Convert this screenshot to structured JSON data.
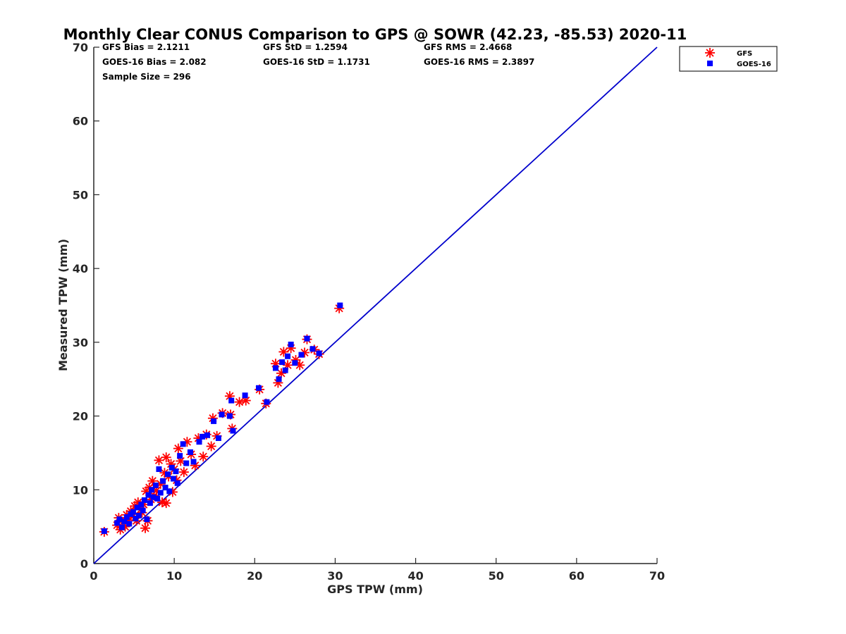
{
  "chart_data": {
    "type": "scatter",
    "title": "Monthly Clear CONUS Comparison to GPS @ SOWR (42.23, -85.53) 2020-11",
    "xlabel": "GPS TPW (mm)",
    "ylabel": "Measured TPW (mm)",
    "xlim": [
      0,
      70
    ],
    "ylim": [
      0,
      70
    ],
    "xticks": [
      "0",
      "10",
      "20",
      "30",
      "40",
      "50",
      "60",
      "70"
    ],
    "yticks": [
      "0",
      "10",
      "20",
      "30",
      "40",
      "50",
      "60",
      "70"
    ],
    "stats": {
      "gfs_bias": "GFS Bias = 2.1211",
      "gfs_std": "GFS StD = 1.2594",
      "gfs_rms": "GFS RMS = 2.4668",
      "goes_bias": "GOES-16 Bias = 2.082",
      "goes_std": "GOES-16 StD = 1.1731",
      "goes_rms": "GOES-16 RMS = 2.3897",
      "sample_size": "Sample Size = 296"
    },
    "legend_position": "outside-top-right",
    "reference_line": {
      "from": [
        0,
        0
      ],
      "to": [
        70,
        70
      ],
      "color": "#0000cc"
    },
    "series": [
      {
        "name": "GFS",
        "marker": "asterisk",
        "color": "#ff0000",
        "points": [
          [
            1.3,
            4.3
          ],
          [
            2.9,
            5.2
          ],
          [
            3.1,
            6.2
          ],
          [
            3.3,
            4.6
          ],
          [
            3.6,
            5.6
          ],
          [
            3.9,
            5.0
          ],
          [
            4.1,
            6.6
          ],
          [
            4.3,
            5.9
          ],
          [
            4.6,
            7.1
          ],
          [
            4.9,
            6.4
          ],
          [
            5.1,
            7.8
          ],
          [
            5.3,
            5.8
          ],
          [
            5.5,
            8.3
          ],
          [
            5.8,
            7.3
          ],
          [
            6.0,
            6.9
          ],
          [
            6.2,
            8.0
          ],
          [
            6.4,
            4.8
          ],
          [
            6.5,
            9.8
          ],
          [
            6.7,
            5.8
          ],
          [
            6.9,
            10.3
          ],
          [
            7.1,
            8.7
          ],
          [
            7.3,
            11.2
          ],
          [
            7.5,
            9.2
          ],
          [
            7.8,
            9.9
          ],
          [
            8.1,
            14.0
          ],
          [
            8.3,
            10.8
          ],
          [
            8.5,
            8.3
          ],
          [
            8.8,
            12.3
          ],
          [
            9.0,
            14.4
          ],
          [
            9.0,
            8.2
          ],
          [
            9.3,
            11.8
          ],
          [
            9.6,
            13.5
          ],
          [
            9.8,
            9.7
          ],
          [
            10.0,
            12.8
          ],
          [
            10.3,
            11.3
          ],
          [
            10.5,
            15.6
          ],
          [
            10.8,
            13.9
          ],
          [
            11.2,
            12.4
          ],
          [
            11.6,
            16.5
          ],
          [
            12.1,
            14.8
          ],
          [
            12.6,
            13.3
          ],
          [
            13.0,
            17.0
          ],
          [
            13.6,
            14.5
          ],
          [
            14.0,
            17.5
          ],
          [
            14.6,
            15.9
          ],
          [
            14.8,
            19.7
          ],
          [
            15.3,
            17.3
          ],
          [
            16.0,
            20.4
          ],
          [
            16.9,
            22.7
          ],
          [
            17.2,
            18.3
          ],
          [
            17.0,
            20.2
          ],
          [
            18.1,
            21.9
          ],
          [
            18.9,
            22.1
          ],
          [
            20.6,
            23.6
          ],
          [
            21.4,
            21.7
          ],
          [
            22.6,
            27.1
          ],
          [
            22.9,
            24.5
          ],
          [
            23.3,
            25.8
          ],
          [
            23.6,
            28.7
          ],
          [
            24.1,
            26.9
          ],
          [
            24.5,
            29.2
          ],
          [
            25.1,
            27.6
          ],
          [
            25.6,
            26.9
          ],
          [
            26.2,
            28.6
          ],
          [
            26.5,
            30.4
          ],
          [
            27.4,
            29.0
          ],
          [
            28.0,
            28.4
          ],
          [
            30.5,
            34.6
          ]
        ]
      },
      {
        "name": "GOES-16",
        "marker": "square",
        "color": "#0000ff",
        "points": [
          [
            1.3,
            4.4
          ],
          [
            2.9,
            5.5
          ],
          [
            3.2,
            6.0
          ],
          [
            3.5,
            4.9
          ],
          [
            3.8,
            5.7
          ],
          [
            4.1,
            6.3
          ],
          [
            4.4,
            5.4
          ],
          [
            4.6,
            6.7
          ],
          [
            4.9,
            7.0
          ],
          [
            5.2,
            6.1
          ],
          [
            5.4,
            7.6
          ],
          [
            5.6,
            6.5
          ],
          [
            5.9,
            8.0
          ],
          [
            6.1,
            7.2
          ],
          [
            6.3,
            8.6
          ],
          [
            6.6,
            6.0
          ],
          [
            6.8,
            9.3
          ],
          [
            7.0,
            8.2
          ],
          [
            7.2,
            10.0
          ],
          [
            7.4,
            9.0
          ],
          [
            7.7,
            10.6
          ],
          [
            7.9,
            8.8
          ],
          [
            8.1,
            12.8
          ],
          [
            8.3,
            9.6
          ],
          [
            8.6,
            11.2
          ],
          [
            8.9,
            10.3
          ],
          [
            9.2,
            12.1
          ],
          [
            9.4,
            9.8
          ],
          [
            9.7,
            13.0
          ],
          [
            9.9,
            11.5
          ],
          [
            10.2,
            12.5
          ],
          [
            10.4,
            10.9
          ],
          [
            10.7,
            14.6
          ],
          [
            11.1,
            16.2
          ],
          [
            11.5,
            13.6
          ],
          [
            12.0,
            15.1
          ],
          [
            12.4,
            13.8
          ],
          [
            13.1,
            16.5
          ],
          [
            13.5,
            17.2
          ],
          [
            14.1,
            17.4
          ],
          [
            14.9,
            19.3
          ],
          [
            15.5,
            17.0
          ],
          [
            15.9,
            20.2
          ],
          [
            16.9,
            20.0
          ],
          [
            17.1,
            22.1
          ],
          [
            17.3,
            18.0
          ],
          [
            18.8,
            22.8
          ],
          [
            20.5,
            23.8
          ],
          [
            21.5,
            21.9
          ],
          [
            22.6,
            26.5
          ],
          [
            23.0,
            25.0
          ],
          [
            23.4,
            27.3
          ],
          [
            23.8,
            26.2
          ],
          [
            24.1,
            28.1
          ],
          [
            24.5,
            29.7
          ],
          [
            25.0,
            27.2
          ],
          [
            25.8,
            28.3
          ],
          [
            26.5,
            30.5
          ],
          [
            27.2,
            29.1
          ],
          [
            28.0,
            28.5
          ],
          [
            30.6,
            35.0
          ]
        ]
      }
    ]
  }
}
